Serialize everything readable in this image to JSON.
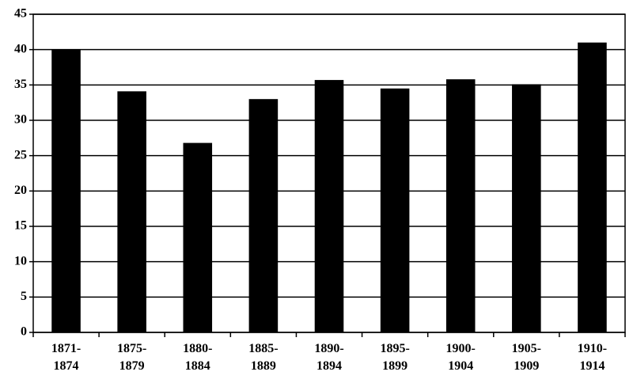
{
  "chart_data": {
    "type": "bar",
    "categories": [
      "1871-\n1874",
      "1875-\n1879",
      "1880-\n1884",
      "1885-\n1889",
      "1890-\n1894",
      "1895-\n1899",
      "1900-\n1904",
      "1905-\n1909",
      "1910-\n1914"
    ],
    "values": [
      40,
      34.1,
      26.8,
      33,
      35.7,
      34.5,
      35.8,
      35.1,
      41
    ],
    "color": "#000000",
    "ylim": [
      0,
      45
    ],
    "yticks": [
      0,
      5,
      10,
      15,
      20,
      25,
      30,
      35,
      40,
      45
    ],
    "grid": true
  }
}
